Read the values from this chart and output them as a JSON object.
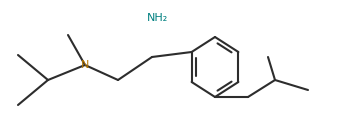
{
  "line_color": "#2d2d2d",
  "bg_color": "#ffffff",
  "nh2_color": "#008080",
  "n_color": "#b87800",
  "line_width": 1.5,
  "fig_width": 3.52,
  "fig_height": 1.31,
  "dpi": 100,
  "font_size": 8.0
}
